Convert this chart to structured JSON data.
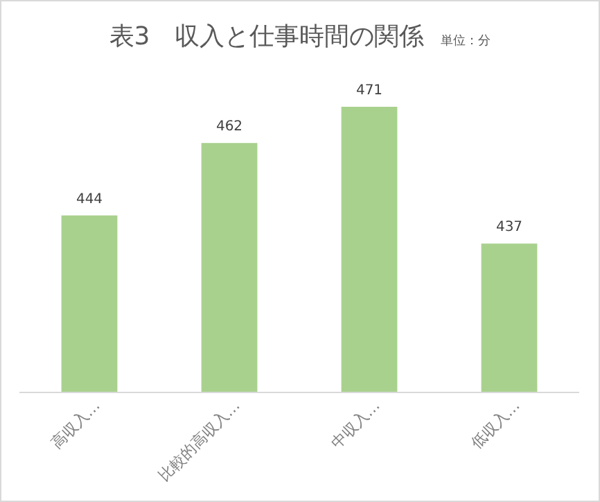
{
  "chart_data": {
    "type": "bar",
    "title": "表3　収入と仕事時間の関係",
    "subtitle": "単位：分",
    "categories": [
      "高収入…",
      "比較的高収入…",
      "中収入…",
      "低収入…"
    ],
    "values": [
      444,
      462,
      471,
      437
    ],
    "color": "#a9d18e",
    "ylim": [
      400,
      471
    ],
    "data_labels": true
  }
}
